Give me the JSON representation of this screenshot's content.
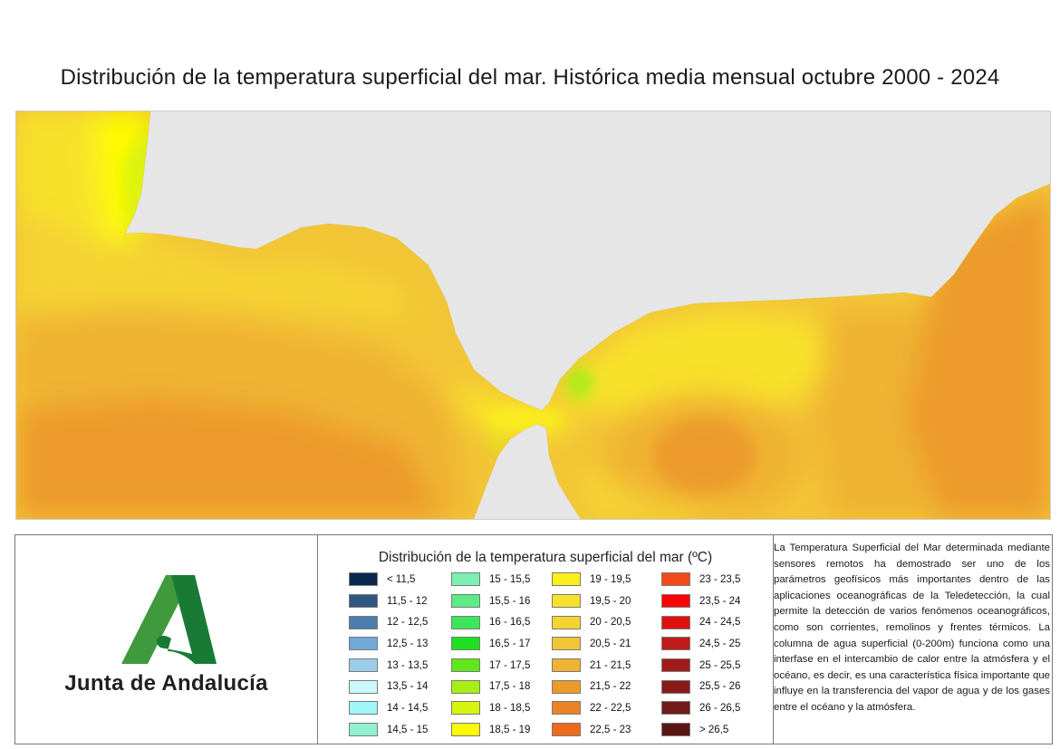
{
  "title": "Distribución de la temperatura superficial del mar. Histórica media mensual octubre 2000 - 2024",
  "map": {
    "land_color": "#e6e6e6"
  },
  "logo": {
    "text": "Junta de Andalucía",
    "icon": "junta-de-andalucia-logo",
    "colors": [
      "#3f9a3e",
      "#187a35"
    ]
  },
  "legend": {
    "title": "Distribución de la temperatura superficial del mar (ºC)",
    "columns": [
      [
        {
          "label": "< 11,5",
          "color": "#0a2a4d"
        },
        {
          "label": "11,5 - 12",
          "color": "#2d5680"
        },
        {
          "label": "12 - 12,5",
          "color": "#4b7eaf"
        },
        {
          "label": "12,5 - 13",
          "color": "#70a8d8"
        },
        {
          "label": "13 - 13,5",
          "color": "#9ccde8"
        },
        {
          "label": "13,5 - 14",
          "color": "#ccf7fb"
        },
        {
          "label": "14 - 14,5",
          "color": "#a1f5f5"
        },
        {
          "label": "14,5 - 15",
          "color": "#90f2d0"
        }
      ],
      [
        {
          "label": "15 - 15,5",
          "color": "#7cf0b3"
        },
        {
          "label": "15,5 - 16",
          "color": "#5deb85"
        },
        {
          "label": "16 - 16,5",
          "color": "#3be65a"
        },
        {
          "label": "16,5 - 17",
          "color": "#1fe01f"
        },
        {
          "label": "17 - 17,5",
          "color": "#62e61c"
        },
        {
          "label": "17,5 - 18",
          "color": "#a6ee14"
        },
        {
          "label": "18 - 18,5",
          "color": "#d6f50d"
        },
        {
          "label": "18,5 - 19",
          "color": "#fdfa05"
        }
      ],
      [
        {
          "label": "19 - 19,5",
          "color": "#fbee1b"
        },
        {
          "label": "19,5 - 20",
          "color": "#f8e12a"
        },
        {
          "label": "20 - 20,5",
          "color": "#f5d332"
        },
        {
          "label": "20,5 - 21",
          "color": "#f2c536"
        },
        {
          "label": "21 - 21,5",
          "color": "#f0b333"
        },
        {
          "label": "21,5 - 22",
          "color": "#ec9b2b"
        },
        {
          "label": "22 - 22,5",
          "color": "#ea8326"
        },
        {
          "label": "22,5 - 23",
          "color": "#ec6a1b"
        }
      ],
      [
        {
          "label": "23 - 23,5",
          "color": "#f44a17"
        },
        {
          "label": "23,5 - 24",
          "color": "#fe0000"
        },
        {
          "label": "24 - 24,5",
          "color": "#e01010"
        },
        {
          "label": "24,5 - 25",
          "color": "#c01a1a"
        },
        {
          "label": "25 - 25,5",
          "color": "#a01c1a"
        },
        {
          "label": "25,5 - 26",
          "color": "#8a1a1a"
        },
        {
          "label": "26 - 26,5",
          "color": "#701a1a"
        },
        {
          "label": "> 26,5",
          "color": "#5a1515"
        }
      ]
    ]
  },
  "info": {
    "text": "La Temperatura Superficial del Mar determinada mediante sensores remotos ha demostrado ser uno de los parámetros geofísicos más importantes dentro de las aplicaciones oceanográficas de la Teledetección, la cual permite la detección de varios fenómenos oceanográficos, como son corrientes, remolinos y frentes térmicos. La columna de agua superficial (0-200m) funciona como una interfase en el intercambio de calor entre la atmósfera y el océano, es decir, es una característica física importante que influye en la transferencia del vapor de agua y de los gases entre el océano y la atmósfera."
  }
}
